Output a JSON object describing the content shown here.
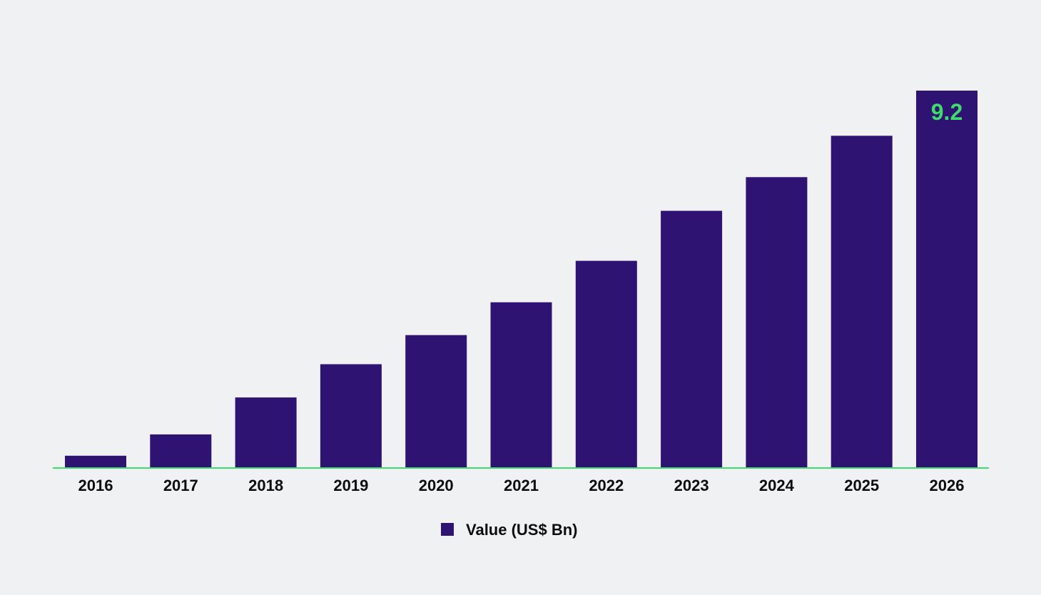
{
  "chart_data": {
    "type": "bar",
    "categories": [
      "2016",
      "2017",
      "2018",
      "2019",
      "2020",
      "2021",
      "2022",
      "2023",
      "2024",
      "2025",
      "2026"
    ],
    "series": [
      {
        "name": "Value (US$ Bn)",
        "values": [
          0.3,
          0.82,
          1.72,
          2.53,
          3.24,
          4.04,
          5.05,
          6.27,
          7.09,
          8.1,
          9.2
        ],
        "data_labels": [
          "",
          "",
          "",
          "",
          "",
          "",
          "",
          "",
          "",
          "",
          "9.2"
        ]
      }
    ],
    "title": "",
    "xlabel": "",
    "ylabel": "",
    "ylim": [
      0,
      9.2
    ],
    "grid": false,
    "legend_position": "bottom-center",
    "colors": {
      "bar": "#2e1372",
      "axis_line": "#3ddc6a",
      "data_label": "#3ddc6a",
      "background": "#f0f1f3"
    }
  }
}
